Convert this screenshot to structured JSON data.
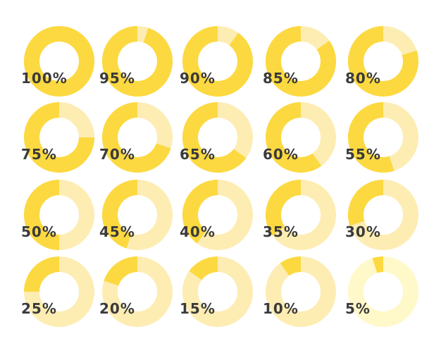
{
  "chart_data": {
    "type": "donut-grid",
    "values": [
      100,
      95,
      90,
      85,
      80,
      75,
      70,
      65,
      60,
      55,
      50,
      45,
      40,
      35,
      30,
      25,
      20,
      15,
      10,
      5
    ],
    "labels": [
      "100%",
      "95%",
      "90%",
      "85%",
      "80%",
      "75%",
      "70%",
      "65%",
      "60%",
      "55%",
      "50%",
      "45%",
      "40%",
      "35%",
      "30%",
      "25%",
      "20%",
      "15%",
      "10%",
      "5%"
    ],
    "unit": "%",
    "fill_color": "#FCD940",
    "track_color": "#FDEDB3",
    "track_color_last": "#FFF8C9"
  }
}
